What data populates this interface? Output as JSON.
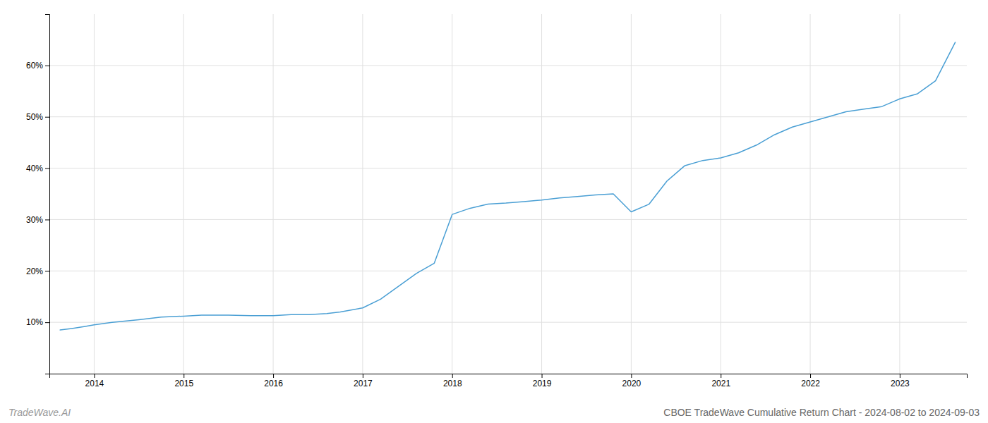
{
  "chart_data": {
    "type": "line",
    "title": "CBOE TradeWave Cumulative Return Chart - 2024-08-02 to 2024-09-03",
    "annotations": [
      "TradeWave.AI"
    ],
    "color": "#4a9fd4",
    "x": [
      2013.62,
      2013.75,
      2013.9,
      2014.0,
      2014.2,
      2014.5,
      2014.75,
      2015.0,
      2015.2,
      2015.5,
      2015.75,
      2016.0,
      2016.2,
      2016.4,
      2016.6,
      2016.75,
      2017.0,
      2017.2,
      2017.4,
      2017.6,
      2017.8,
      2018.0,
      2018.2,
      2018.4,
      2018.6,
      2018.8,
      2019.0,
      2019.2,
      2019.4,
      2019.6,
      2019.8,
      2020.0,
      2020.2,
      2020.4,
      2020.6,
      2020.8,
      2021.0,
      2021.2,
      2021.4,
      2021.6,
      2021.8,
      2022.0,
      2022.2,
      2022.4,
      2022.6,
      2022.8,
      2023.0,
      2023.2,
      2023.4,
      2023.62
    ],
    "values": [
      8.5,
      8.8,
      9.2,
      9.5,
      10.0,
      10.5,
      11.0,
      11.2,
      11.4,
      11.4,
      11.3,
      11.3,
      11.5,
      11.5,
      11.7,
      12.0,
      12.8,
      14.5,
      17.0,
      19.5,
      21.5,
      31.0,
      32.2,
      33.0,
      33.2,
      33.5,
      33.8,
      34.2,
      34.5,
      34.8,
      35.0,
      31.5,
      33.0,
      37.5,
      40.5,
      41.5,
      42.0,
      43.0,
      44.5,
      46.5,
      48.0,
      49.0,
      50.0,
      51.0,
      51.5,
      52.0,
      53.5,
      54.5,
      57.0,
      64.5
    ],
    "xlim": [
      2013.5,
      2023.75
    ],
    "xticks": [
      2014,
      2015,
      2016,
      2017,
      2018,
      2019,
      2020,
      2021,
      2022,
      2023
    ],
    "ylim": [
      0,
      70
    ],
    "yticks": [
      {
        "value": 10,
        "label": "10%"
      },
      {
        "value": 20,
        "label": "20%"
      },
      {
        "value": 30,
        "label": "30%"
      },
      {
        "value": 40,
        "label": "40%"
      },
      {
        "value": 50,
        "label": "50%"
      },
      {
        "value": 60,
        "label": "60%"
      }
    ],
    "grid": true
  }
}
